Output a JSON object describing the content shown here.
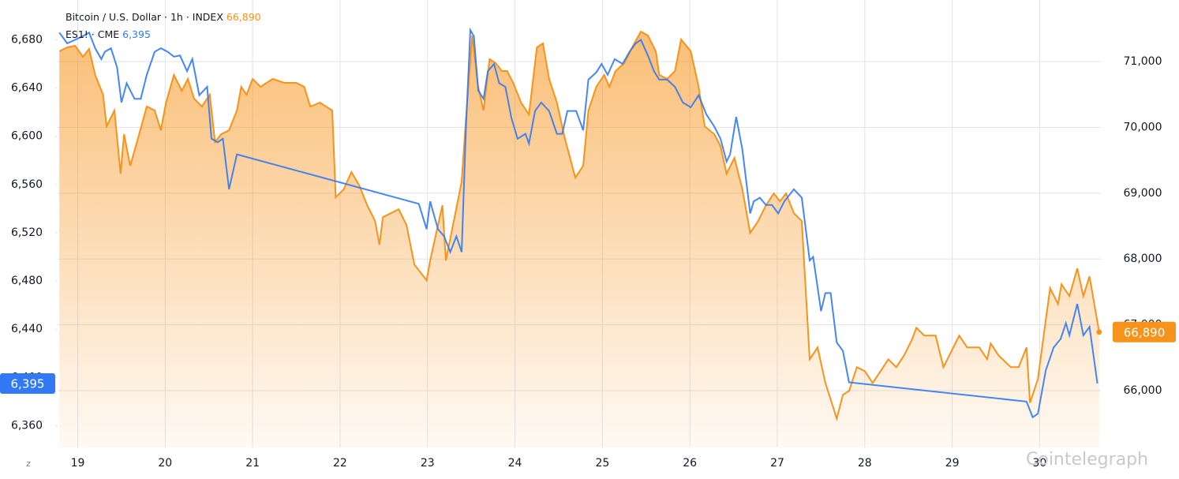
{
  "chart_data": {
    "type": "line",
    "xlim": [
      18.77,
      30.7
    ],
    "xticks": [
      19,
      20,
      21,
      22,
      23,
      24,
      25,
      26,
      27,
      28,
      29,
      30
    ],
    "ylim": [
      6342,
      6713
    ],
    "yticks": [
      {
        "value": 6360,
        "label": "6,360"
      },
      {
        "value": 6400,
        "label": "6,400"
      },
      {
        "value": 6440,
        "label": "6,440"
      },
      {
        "value": 6480,
        "label": "6,480"
      },
      {
        "value": 6520,
        "label": "6,520"
      },
      {
        "value": 6560,
        "label": "6,560"
      },
      {
        "value": 6600,
        "label": "6,600"
      },
      {
        "value": 6640,
        "label": "6,640"
      },
      {
        "value": 6680,
        "label": "6,680"
      }
    ],
    "y2lim": [
      65137,
      71935
    ],
    "y2ticks": [
      {
        "value": 66000,
        "label": "66,000"
      },
      {
        "value": 67000,
        "label": "67,000"
      },
      {
        "value": 68000,
        "label": "68,000"
      },
      {
        "value": 69000,
        "label": "69,000"
      },
      {
        "value": 70000,
        "label": "70,000"
      },
      {
        "value": 71000,
        "label": "71,000"
      }
    ],
    "grid": true,
    "watermark": "Cointelegraph",
    "series": [
      {
        "name": "Bitcoin / U.S. Dollar · 1h · INDEX",
        "color": "#f7931a",
        "axis": "y2",
        "area": true,
        "last_label": "66,890",
        "x": [
          18.79,
          18.88,
          18.97,
          19.06,
          19.13,
          19.2,
          19.29,
          19.33,
          19.42,
          19.49,
          19.53,
          19.6,
          19.69,
          19.79,
          19.88,
          19.95,
          20.01,
          20.1,
          20.19,
          20.26,
          20.33,
          20.42,
          20.51,
          20.57,
          20.64,
          20.73,
          20.82,
          20.87,
          20.93,
          21.0,
          21.09,
          21.23,
          21.36,
          21.5,
          21.59,
          21.66,
          21.77,
          21.91,
          21.95,
          22.04,
          22.13,
          22.22,
          22.31,
          22.4,
          22.45,
          22.49,
          22.58,
          22.67,
          22.76,
          22.85,
          22.99,
          23.03,
          23.08,
          23.17,
          23.21,
          23.3,
          23.39,
          23.44,
          23.51,
          23.58,
          23.64,
          23.71,
          23.78,
          23.85,
          23.91,
          23.98,
          24.07,
          24.16,
          24.25,
          24.32,
          24.39,
          24.48,
          24.57,
          24.69,
          24.78,
          24.84,
          24.93,
          25.02,
          25.08,
          25.15,
          25.25,
          25.34,
          25.44,
          25.52,
          25.61,
          25.65,
          25.74,
          25.83,
          25.9,
          26.01,
          26.1,
          26.17,
          26.28,
          26.35,
          26.42,
          26.51,
          26.6,
          26.69,
          26.78,
          26.87,
          26.96,
          27.03,
          27.1,
          27.19,
          27.28,
          27.37,
          27.46,
          27.55,
          27.68,
          27.75,
          27.82,
          27.91,
          28.0,
          28.09,
          28.18,
          28.27,
          28.36,
          28.45,
          28.54,
          28.59,
          28.68,
          28.81,
          28.9,
          28.99,
          29.08,
          29.17,
          29.31,
          29.4,
          29.44,
          29.53,
          29.67,
          29.76,
          29.85,
          29.89,
          29.98,
          30.07,
          30.12,
          30.21,
          30.25,
          30.34,
          30.43,
          30.5,
          30.57,
          30.68
        ],
        "values": [
          71156,
          71216,
          71240,
          71072,
          71192,
          70796,
          70496,
          70016,
          70256,
          69296,
          69896,
          69416,
          69836,
          70316,
          70256,
          69956,
          70376,
          70796,
          70556,
          70736,
          70436,
          70316,
          70496,
          69776,
          69896,
          69956,
          70256,
          70616,
          70496,
          70736,
          70616,
          70736,
          70676,
          70676,
          70616,
          70316,
          70376,
          70256,
          68936,
          69056,
          69320,
          69116,
          68816,
          68576,
          68216,
          68636,
          68696,
          68756,
          68516,
          67916,
          67676,
          67976,
          68276,
          68816,
          67976,
          68576,
          69176,
          70136,
          71396,
          70616,
          70256,
          71036,
          70976,
          70856,
          70856,
          70676,
          70376,
          70196,
          71216,
          71276,
          70736,
          70376,
          69836,
          69236,
          69416,
          70256,
          70616,
          70796,
          70616,
          70856,
          70976,
          71216,
          71456,
          71396,
          71156,
          70796,
          70736,
          70856,
          71336,
          71156,
          70616,
          70016,
          69896,
          69716,
          69296,
          69536,
          69056,
          68396,
          68576,
          68816,
          68996,
          68876,
          68996,
          68696,
          68576,
          66476,
          66656,
          66116,
          65576,
          65936,
          65996,
          66356,
          66296,
          66116,
          66296,
          66476,
          66356,
          66536,
          66776,
          66956,
          66836,
          66836,
          66356,
          66596,
          66836,
          66656,
          66656,
          66476,
          66716,
          66536,
          66356,
          66356,
          66656,
          65816,
          66176,
          67076,
          67556,
          67316,
          67616,
          67436,
          67856,
          67436,
          67736,
          66890
        ]
      },
      {
        "name": "ES1! · CME",
        "color": "#3179f5",
        "axis": "y",
        "last_label": "6,395",
        "x": [
          18.79,
          18.88,
          18.97,
          19.06,
          19.13,
          19.2,
          19.27,
          19.31,
          19.38,
          19.45,
          19.5,
          19.56,
          19.65,
          19.72,
          19.79,
          19.88,
          19.95,
          20.03,
          20.1,
          20.17,
          20.25,
          20.31,
          20.39,
          20.48,
          20.53,
          20.6,
          20.66,
          20.73,
          20.82,
          22.9,
          22.99,
          23.03,
          23.12,
          23.19,
          23.26,
          23.33,
          23.39,
          23.44,
          23.49,
          23.53,
          23.58,
          23.64,
          23.69,
          23.76,
          23.82,
          23.89,
          23.96,
          24.03,
          24.12,
          24.16,
          24.23,
          24.3,
          24.39,
          24.48,
          24.54,
          24.6,
          24.7,
          24.78,
          24.84,
          24.93,
          24.99,
          25.06,
          25.14,
          25.23,
          25.31,
          25.38,
          25.44,
          25.52,
          25.59,
          25.65,
          25.74,
          25.83,
          25.92,
          26.01,
          26.1,
          26.19,
          26.28,
          26.35,
          26.42,
          26.46,
          26.53,
          26.6,
          26.69,
          26.73,
          26.8,
          26.87,
          26.94,
          27.01,
          27.08,
          27.19,
          27.28,
          27.37,
          27.41,
          27.5,
          27.55,
          27.61,
          27.68,
          27.75,
          27.82,
          29.85,
          29.92,
          29.98,
          30.07,
          30.16,
          30.24,
          30.3,
          30.34,
          30.43,
          30.5,
          30.57,
          30.66
        ],
        "values": [
          6686,
          6677,
          6680,
          6683,
          6686,
          6673,
          6664,
          6670,
          6673,
          6657,
          6628,
          6644,
          6631,
          6631,
          6651,
          6670,
          6673,
          6670,
          6666,
          6667,
          6654,
          6664,
          6634,
          6641,
          6598,
          6595,
          6598,
          6556,
          6585,
          6544,
          6523,
          6546,
          6523,
          6517,
          6504,
          6517,
          6504,
          6608,
          6688,
          6683,
          6638,
          6631,
          6654,
          6660,
          6644,
          6641,
          6615,
          6598,
          6602,
          6594,
          6621,
          6628,
          6621,
          6602,
          6602,
          6621,
          6621,
          6605,
          6647,
          6653,
          6660,
          6651,
          6664,
          6660,
          6670,
          6677,
          6680,
          6667,
          6654,
          6647,
          6647,
          6641,
          6628,
          6624,
          6634,
          6618,
          6608,
          6598,
          6579,
          6585,
          6616,
          6589,
          6536,
          6546,
          6549,
          6543,
          6543,
          6536,
          6546,
          6556,
          6549,
          6497,
          6500,
          6455,
          6470,
          6470,
          6429,
          6422,
          6396,
          6380,
          6367,
          6370,
          6406,
          6425,
          6432,
          6445,
          6435,
          6461,
          6435,
          6442,
          6395
        ]
      }
    ]
  }
}
